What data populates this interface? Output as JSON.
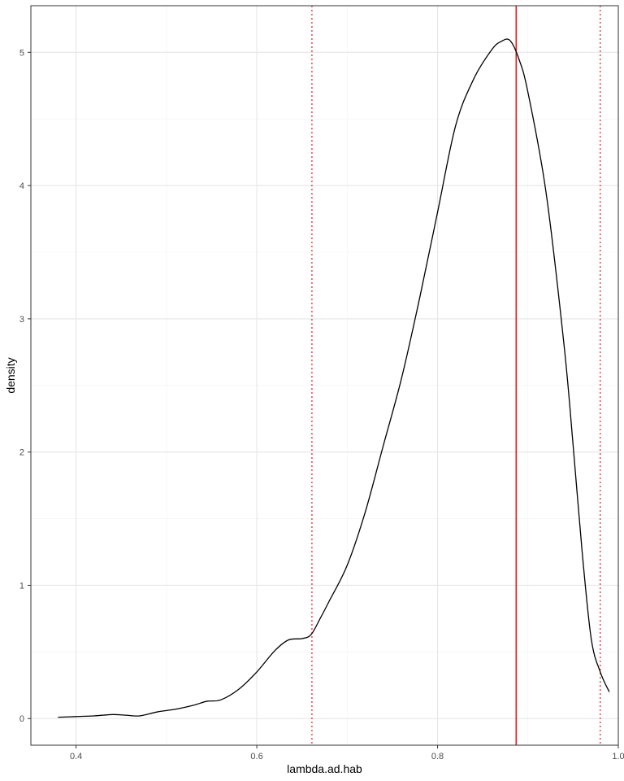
{
  "chart_data": {
    "type": "line",
    "title": "",
    "xlabel": "lambda.ad.hab",
    "ylabel": "density",
    "xlim": [
      0.35,
      1.0
    ],
    "ylim": [
      -0.2,
      5.35
    ],
    "x_ticks": [
      0.4,
      0.6,
      0.8,
      1.0
    ],
    "x_tick_labels": [
      "0.4",
      "0.6",
      "0.8",
      "1.0"
    ],
    "y_ticks": [
      0,
      1,
      2,
      3,
      4,
      5
    ],
    "y_tick_labels": [
      "0",
      "1",
      "2",
      "3",
      "4",
      "5"
    ],
    "grid": true,
    "series": [
      {
        "color": "#000000",
        "x": [
          0.38,
          0.4,
          0.42,
          0.44,
          0.455,
          0.47,
          0.49,
          0.51,
          0.53,
          0.545,
          0.56,
          0.58,
          0.6,
          0.62,
          0.635,
          0.65,
          0.66,
          0.67,
          0.68,
          0.7,
          0.72,
          0.74,
          0.76,
          0.78,
          0.8,
          0.82,
          0.84,
          0.86,
          0.87,
          0.88,
          0.89,
          0.9,
          0.92,
          0.94,
          0.95,
          0.96,
          0.97,
          0.98,
          0.99
        ],
        "values": [
          0.01,
          0.015,
          0.02,
          0.03,
          0.025,
          0.02,
          0.05,
          0.07,
          0.1,
          0.13,
          0.14,
          0.22,
          0.35,
          0.51,
          0.59,
          0.6,
          0.63,
          0.75,
          0.88,
          1.15,
          1.55,
          2.05,
          2.55,
          3.15,
          3.8,
          4.45,
          4.8,
          5.02,
          5.08,
          5.09,
          4.95,
          4.7,
          3.95,
          2.8,
          2.05,
          1.25,
          0.6,
          0.35,
          0.2
        ]
      }
    ],
    "reference_lines": [
      {
        "x": 0.887,
        "color": "#e41a1c",
        "style": "solid"
      },
      {
        "x": 0.661,
        "color": "#e41a1c",
        "style": "dotted"
      },
      {
        "x": 0.98,
        "color": "#e41a1c",
        "style": "dotted"
      }
    ],
    "colors": {
      "panel_border": "#333333",
      "grid_major": "#e6e6e6",
      "grid_minor": "#f2f2f2"
    }
  }
}
